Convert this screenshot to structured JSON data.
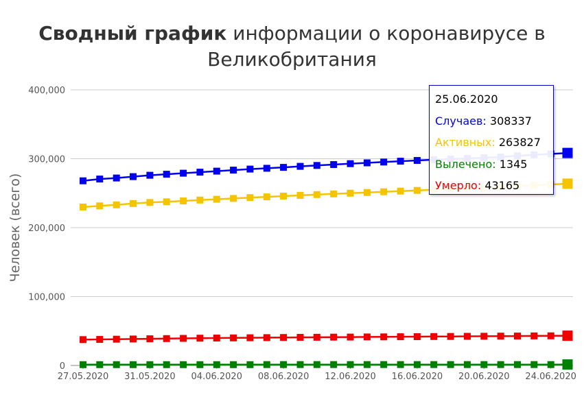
{
  "title": {
    "bold": "Сводный график",
    "rest": "информации о коронавирусе в Великобритания"
  },
  "chart_data": {
    "type": "line",
    "title": "Сводный график информации о коронавирусе в Великобритания",
    "ylabel": "Человек (всего)",
    "xlabel": "",
    "ylim": [
      0,
      400000
    ],
    "yticks": [
      "0",
      "100,000",
      "200,000",
      "300,000",
      "400,000"
    ],
    "ytick_values": [
      0,
      100000,
      200000,
      300000,
      400000
    ],
    "xtick_labels": [
      "27.05.2020",
      "31.05.2020",
      "04.06.2020",
      "08.06.2020",
      "12.06.2020",
      "16.06.2020",
      "20.06.2020",
      "24.06.2020"
    ],
    "xtick_index": [
      0,
      4,
      8,
      12,
      16,
      20,
      24,
      28
    ],
    "grid": true,
    "x": [
      "27.05.2020",
      "28.05.2020",
      "29.05.2020",
      "30.05.2020",
      "31.05.2020",
      "01.06.2020",
      "02.06.2020",
      "03.06.2020",
      "04.06.2020",
      "05.06.2020",
      "06.06.2020",
      "07.06.2020",
      "08.06.2020",
      "09.06.2020",
      "10.06.2020",
      "11.06.2020",
      "12.06.2020",
      "13.06.2020",
      "14.06.2020",
      "15.06.2020",
      "16.06.2020",
      "17.06.2020",
      "18.06.2020",
      "19.06.2020",
      "20.06.2020",
      "21.06.2020",
      "22.06.2020",
      "23.06.2020",
      "24.06.2020",
      "25.06.2020"
    ],
    "series": [
      {
        "name": "Случаев",
        "color": "#0000ee",
        "values": [
          268000,
          270500,
          272000,
          274000,
          276000,
          277500,
          279000,
          280500,
          282000,
          283500,
          285000,
          286200,
          287500,
          289000,
          290200,
          291500,
          292800,
          294000,
          295200,
          296400,
          297500,
          298600,
          299600,
          300500,
          301500,
          302500,
          304200,
          305700,
          307000,
          308337
        ]
      },
      {
        "name": "Активных",
        "color": "#f5c400",
        "values": [
          230000,
          231500,
          233000,
          235000,
          236500,
          237500,
          238800,
          240000,
          241200,
          242400,
          243600,
          244700,
          245800,
          246900,
          248000,
          249000,
          250000,
          251000,
          252000,
          253000,
          254000,
          255000,
          256000,
          257000,
          257800,
          258600,
          260000,
          261500,
          262600,
          263827
        ]
      },
      {
        "name": "Вылечено",
        "color": "#008000",
        "values": [
          1200,
          1200,
          1200,
          1210,
          1210,
          1220,
          1220,
          1230,
          1230,
          1240,
          1240,
          1250,
          1250,
          1260,
          1260,
          1270,
          1270,
          1280,
          1280,
          1290,
          1290,
          1300,
          1300,
          1310,
          1310,
          1320,
          1325,
          1330,
          1340,
          1345
        ]
      },
      {
        "name": "Умерло",
        "color": "#ee0000",
        "values": [
          37500,
          37800,
          38100,
          38400,
          38700,
          39000,
          39300,
          39600,
          39800,
          40000,
          40200,
          40400,
          40600,
          40750,
          40900,
          41050,
          41200,
          41350,
          41500,
          41650,
          41800,
          41950,
          42100,
          42250,
          42400,
          42550,
          42700,
          42850,
          43000,
          43165
        ]
      }
    ]
  },
  "tooltip": {
    "date": "25.06.2020",
    "rows": [
      {
        "label": "Случаев:",
        "value": "308337",
        "color": "#0000ee"
      },
      {
        "label": "Активных:",
        "value": "263827",
        "color": "#f5c400"
      },
      {
        "label": "Вылечено:",
        "value": "1345",
        "color": "#008000"
      },
      {
        "label": "Умерло:",
        "value": "43165",
        "color": "#ee0000"
      }
    ]
  }
}
